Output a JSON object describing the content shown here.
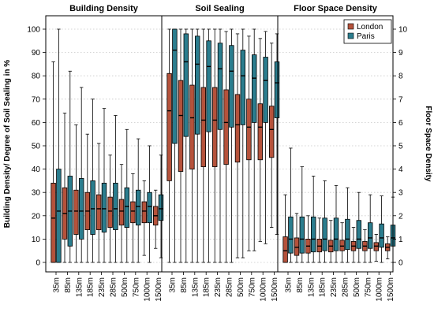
{
  "chart_data": {
    "type": "boxplot",
    "panels": [
      {
        "title": "Building Density",
        "axis": "left",
        "categories": [
          "35m",
          "85m",
          "135m",
          "185m",
          "235m",
          "285m",
          "500m",
          "750m",
          "1000m",
          "1500m"
        ],
        "series": [
          {
            "name": "London",
            "boxes": [
              {
                "min": 0,
                "q1": 0,
                "median": 19,
                "q3": 34,
                "max": 86
              },
              {
                "min": 0,
                "q1": 10,
                "median": 21,
                "q3": 32,
                "max": 64
              },
              {
                "min": 0,
                "q1": 12,
                "median": 22,
                "q3": 31,
                "max": 59
              },
              {
                "min": 0,
                "q1": 14,
                "median": 22,
                "q3": 30,
                "max": 55
              },
              {
                "min": 0,
                "q1": 14,
                "median": 23,
                "q3": 29,
                "max": 51
              },
              {
                "min": 0,
                "q1": 15,
                "median": 22,
                "q3": 28,
                "max": 46
              },
              {
                "min": 0,
                "q1": 16,
                "median": 22,
                "q3": 27,
                "max": 42
              },
              {
                "min": 0,
                "q1": 17,
                "median": 22,
                "q3": 26,
                "max": 38
              },
              {
                "min": 3,
                "q1": 17,
                "median": 22,
                "q3": 26,
                "max": 35
              },
              {
                "min": 6,
                "q1": 16,
                "median": 20,
                "q3": 24,
                "max": 31
              }
            ]
          },
          {
            "name": "Paris",
            "boxes": [
              {
                "min": 0,
                "q1": 0,
                "median": 22,
                "q3": 40,
                "max": 100
              },
              {
                "min": 0,
                "q1": 7,
                "median": 22,
                "q3": 37,
                "max": 82
              },
              {
                "min": 0,
                "q1": 10,
                "median": 22,
                "q3": 36,
                "max": 75
              },
              {
                "min": 0,
                "q1": 12,
                "median": 23,
                "q3": 35,
                "max": 70
              },
              {
                "min": 0,
                "q1": 13,
                "median": 23,
                "q3": 34,
                "max": 66
              },
              {
                "min": 0,
                "q1": 14,
                "median": 23,
                "q3": 34,
                "max": 63
              },
              {
                "min": 0,
                "q1": 15,
                "median": 24,
                "q3": 32,
                "max": 57
              },
              {
                "min": 0,
                "q1": 16,
                "median": 24,
                "q3": 31,
                "max": 53
              },
              {
                "min": 0,
                "q1": 17,
                "median": 24,
                "q3": 30,
                "max": 50
              },
              {
                "min": 2,
                "q1": 18,
                "median": 23,
                "q3": 29,
                "max": 46
              }
            ]
          }
        ]
      },
      {
        "title": "Soil Sealing",
        "axis": "left",
        "categories": [
          "35m",
          "85m",
          "135m",
          "185m",
          "235m",
          "285m",
          "500m",
          "750m",
          "1000m",
          "1500m"
        ],
        "series": [
          {
            "name": "London",
            "boxes": [
              {
                "min": 0,
                "q1": 35,
                "median": 65,
                "q3": 81,
                "max": 100
              },
              {
                "min": 0,
                "q1": 39,
                "median": 63,
                "q3": 78,
                "max": 100
              },
              {
                "min": 0,
                "q1": 40,
                "median": 62,
                "q3": 76,
                "max": 100
              },
              {
                "min": 0,
                "q1": 41,
                "median": 61,
                "q3": 75,
                "max": 100
              },
              {
                "min": 0,
                "q1": 41,
                "median": 61,
                "q3": 75,
                "max": 100
              },
              {
                "min": 0,
                "q1": 42,
                "median": 60,
                "q3": 74,
                "max": 99
              },
              {
                "min": 2,
                "q1": 43,
                "median": 59,
                "q3": 72,
                "max": 98
              },
              {
                "min": 5,
                "q1": 44,
                "median": 58,
                "q3": 70,
                "max": 97
              },
              {
                "min": 9,
                "q1": 44,
                "median": 58,
                "q3": 68,
                "max": 96
              },
              {
                "min": 15,
                "q1": 45,
                "median": 57,
                "q3": 67,
                "max": 94
              }
            ]
          },
          {
            "name": "Paris",
            "boxes": [
              {
                "min": 0,
                "q1": 51,
                "median": 91,
                "q3": 100,
                "max": 100
              },
              {
                "min": 0,
                "q1": 54,
                "median": 86,
                "q3": 98,
                "max": 100
              },
              {
                "min": 0,
                "q1": 55,
                "median": 85,
                "q3": 97,
                "max": 100
              },
              {
                "min": 0,
                "q1": 56,
                "median": 84,
                "q3": 95,
                "max": 100
              },
              {
                "min": 0,
                "q1": 57,
                "median": 83,
                "q3": 94,
                "max": 100
              },
              {
                "min": 0,
                "q1": 58,
                "median": 82,
                "q3": 93,
                "max": 100
              },
              {
                "min": 2,
                "q1": 59,
                "median": 80,
                "q3": 91,
                "max": 100
              },
              {
                "min": 5,
                "q1": 60,
                "median": 79,
                "q3": 89,
                "max": 100
              },
              {
                "min": 8,
                "q1": 60,
                "median": 78,
                "q3": 88,
                "max": 99
              },
              {
                "min": 12,
                "q1": 62,
                "median": 77,
                "q3": 86,
                "max": 98
              }
            ]
          }
        ]
      },
      {
        "title": "Floor Space Density",
        "axis": "right",
        "categories": [
          "35m",
          "85m",
          "135m",
          "185m",
          "235m",
          "285m",
          "500m",
          "750m",
          "1000m",
          "1500m"
        ],
        "series": [
          {
            "name": "London",
            "boxes": [
              {
                "min": 0,
                "q1": 0,
                "median": 0.5,
                "q3": 1.1,
                "max": 2.9
              },
              {
                "min": 0,
                "q1": 0.3,
                "median": 0.65,
                "q3": 1.05,
                "max": 2.1
              },
              {
                "min": 0,
                "q1": 0.4,
                "median": 0.7,
                "q3": 1.0,
                "max": 2.0
              },
              {
                "min": 0,
                "q1": 0.45,
                "median": 0.7,
                "q3": 1.0,
                "max": 1.9
              },
              {
                "min": 0,
                "q1": 0.45,
                "median": 0.7,
                "q3": 0.95,
                "max": 1.8
              },
              {
                "min": 0,
                "q1": 0.5,
                "median": 0.7,
                "q3": 0.95,
                "max": 1.7
              },
              {
                "min": 0,
                "q1": 0.5,
                "median": 0.7,
                "q3": 0.9,
                "max": 1.5
              },
              {
                "min": 0,
                "q1": 0.5,
                "median": 0.7,
                "q3": 0.9,
                "max": 1.4
              },
              {
                "min": 0.05,
                "q1": 0.5,
                "median": 0.7,
                "q3": 0.85,
                "max": 1.2
              },
              {
                "min": 0.15,
                "q1": 0.5,
                "median": 0.65,
                "q3": 0.8,
                "max": 1.1
              }
            ]
          },
          {
            "name": "Paris",
            "boxes": [
              {
                "min": 0,
                "q1": 0.4,
                "median": 1.0,
                "q3": 1.95,
                "max": 4.9
              },
              {
                "min": 0,
                "q1": 0.4,
                "median": 1.0,
                "q3": 1.95,
                "max": 4.1
              },
              {
                "min": 0,
                "q1": 0.45,
                "median": 1.0,
                "q3": 1.95,
                "max": 3.7
              },
              {
                "min": 0,
                "q1": 0.5,
                "median": 1.0,
                "q3": 1.9,
                "max": 3.5
              },
              {
                "min": 0,
                "q1": 0.5,
                "median": 1.0,
                "q3": 1.9,
                "max": 3.3
              },
              {
                "min": 0,
                "q1": 0.55,
                "median": 1.0,
                "q3": 1.85,
                "max": 3.2
              },
              {
                "min": 0,
                "q1": 0.6,
                "median": 1.0,
                "q3": 1.8,
                "max": 3.0
              },
              {
                "min": 0,
                "q1": 0.6,
                "median": 1.05,
                "q3": 1.7,
                "max": 2.9
              },
              {
                "min": 0,
                "q1": 0.65,
                "median": 1.05,
                "q3": 1.65,
                "max": 2.85
              },
              {
                "min": 0,
                "q1": 0.7,
                "median": 1.05,
                "q3": 1.6,
                "max": 2.8
              }
            ]
          }
        ]
      }
    ],
    "left_axis": {
      "label": "Building Density/ Degree of Soil Sealing in %",
      "range": [
        0,
        100
      ],
      "ticks": [
        "0",
        "10",
        "20",
        "30",
        "40",
        "50",
        "60",
        "70",
        "80",
        "90",
        "100"
      ]
    },
    "right_axis": {
      "label": "Floor Space Density",
      "range": [
        0,
        10
      ],
      "ticks": [
        "0",
        "1",
        "2",
        "3",
        "4",
        "5",
        "6",
        "7",
        "8",
        "9",
        "10"
      ]
    },
    "legend": {
      "position": "top-right",
      "entries": [
        {
          "name": "London",
          "color": "#b5523b"
        },
        {
          "name": "Paris",
          "color": "#2b7d8e"
        }
      ]
    },
    "colors": {
      "London": "#b5523b",
      "Paris": "#2b7d8e"
    },
    "grid": "horizontal dotted"
  }
}
